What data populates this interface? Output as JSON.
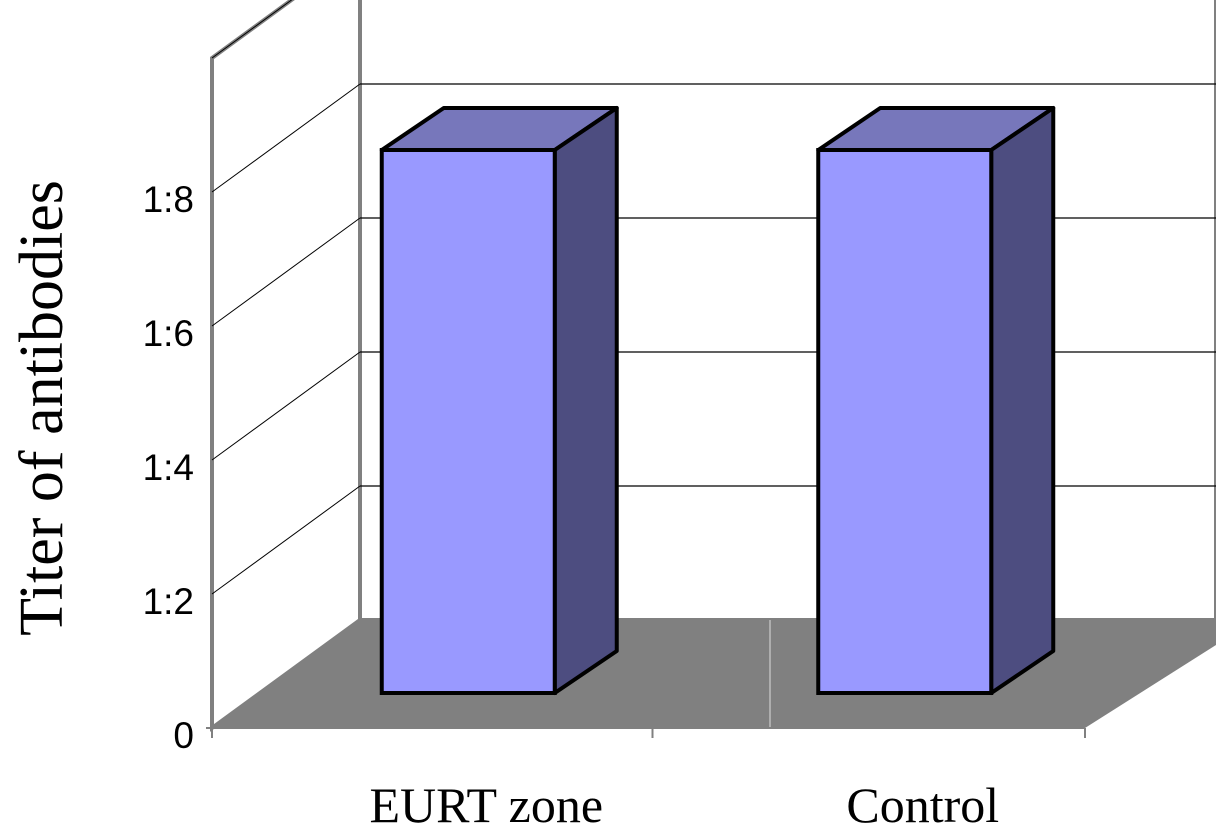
{
  "chart_data": {
    "type": "bar",
    "categories": [
      "EURT zone",
      "Control"
    ],
    "values": [
      9,
      9
    ],
    "title": "",
    "xlabel": "",
    "ylabel": "Titer of antibodies",
    "ylim": [
      0,
      10
    ],
    "y_ticks": [
      {
        "value": 0,
        "label": "0"
      },
      {
        "value": 2,
        "label": "1:2"
      },
      {
        "value": 4,
        "label": "1:4"
      },
      {
        "value": 6,
        "label": "1:6"
      },
      {
        "value": 8,
        "label": "1:8"
      }
    ],
    "grid": true,
    "legend": "none",
    "style": "3d",
    "colors": {
      "bar_front": "#9999ff",
      "bar_top": "#7777bb",
      "bar_side": "#4d4d80",
      "floor": "#808080",
      "walls": "#ffffff"
    }
  }
}
